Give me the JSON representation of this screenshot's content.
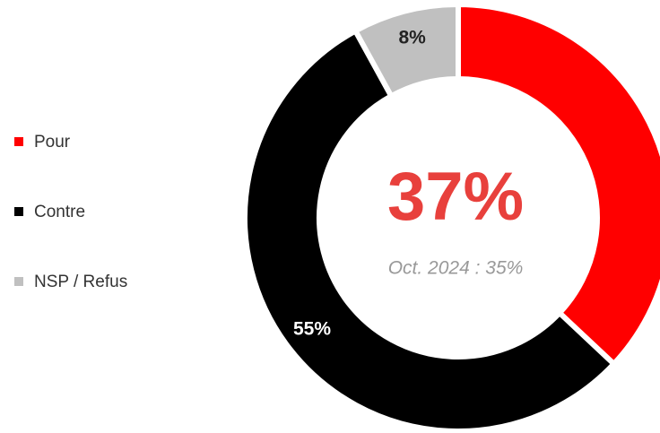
{
  "chart_data": {
    "type": "donut",
    "categories": [
      "Pour",
      "Contre",
      "NSP / Refus"
    ],
    "values": [
      37,
      55,
      8
    ],
    "value_labels": [
      "37%",
      "55%",
      "8%"
    ],
    "colors": [
      "#ff0000",
      "#000000",
      "#c0c0c0"
    ],
    "annotation": "Oct. 2024 : 35%",
    "legend": "left"
  }
}
